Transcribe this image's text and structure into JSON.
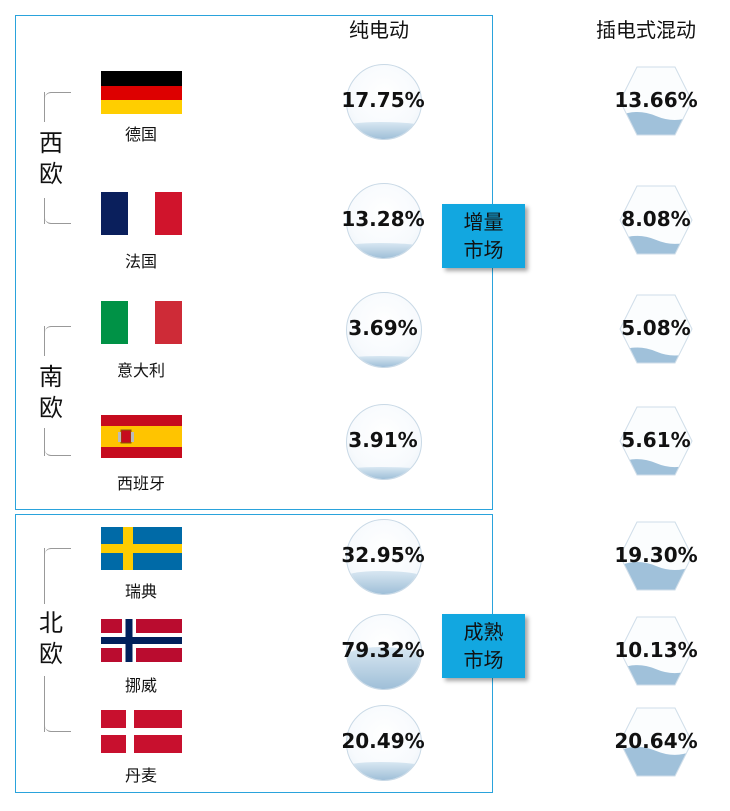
{
  "chart_data": {
    "type": "table",
    "headers": {
      "bev": "纯电动",
      "phev": "插电式混动"
    },
    "regions": [
      {
        "label": "西\n欧",
        "countries": [
          "德国",
          "法国"
        ]
      },
      {
        "label": "南\n欧",
        "countries": [
          "意大利",
          "西班牙"
        ]
      },
      {
        "label": "北\n欧",
        "countries": [
          "瑞典",
          "挪威",
          "丹麦"
        ]
      }
    ],
    "market_groups": [
      {
        "label": "增量\n市场",
        "countries": [
          "德国",
          "法国",
          "意大利",
          "西班牙"
        ]
      },
      {
        "label": "成熟\n市场",
        "countries": [
          "瑞典",
          "挪威",
          "丹麦"
        ]
      }
    ],
    "rows": [
      {
        "country": "德国",
        "flag": "germany",
        "bev": "17.75%",
        "phev": "13.66%",
        "bev_value": 17.75,
        "phev_value": 13.66
      },
      {
        "country": "法国",
        "flag": "france",
        "bev": "13.28%",
        "phev": "8.08%",
        "bev_value": 13.28,
        "phev_value": 8.08
      },
      {
        "country": "意大利",
        "flag": "italy",
        "bev": "3.69%",
        "phev": "5.08%",
        "bev_value": 3.69,
        "phev_value": 5.08
      },
      {
        "country": "西班牙",
        "flag": "spain",
        "bev": "3.91%",
        "phev": "5.61%",
        "bev_value": 3.91,
        "phev_value": 5.61
      },
      {
        "country": "瑞典",
        "flag": "sweden",
        "bev": "32.95%",
        "phev": "19.30%",
        "bev_value": 32.95,
        "phev_value": 19.3
      },
      {
        "country": "挪威",
        "flag": "norway",
        "bev": "79.32%",
        "phev": "10.13%",
        "bev_value": 79.32,
        "phev_value": 10.13
      },
      {
        "country": "丹麦",
        "flag": "denmark",
        "bev": "20.49%",
        "phev": "20.64%",
        "bev_value": 20.49,
        "phev_value": 20.64
      }
    ]
  },
  "colors": {
    "accent": "#12a7e0",
    "border": "#2aa3dc",
    "water": "#b6cfe2"
  }
}
